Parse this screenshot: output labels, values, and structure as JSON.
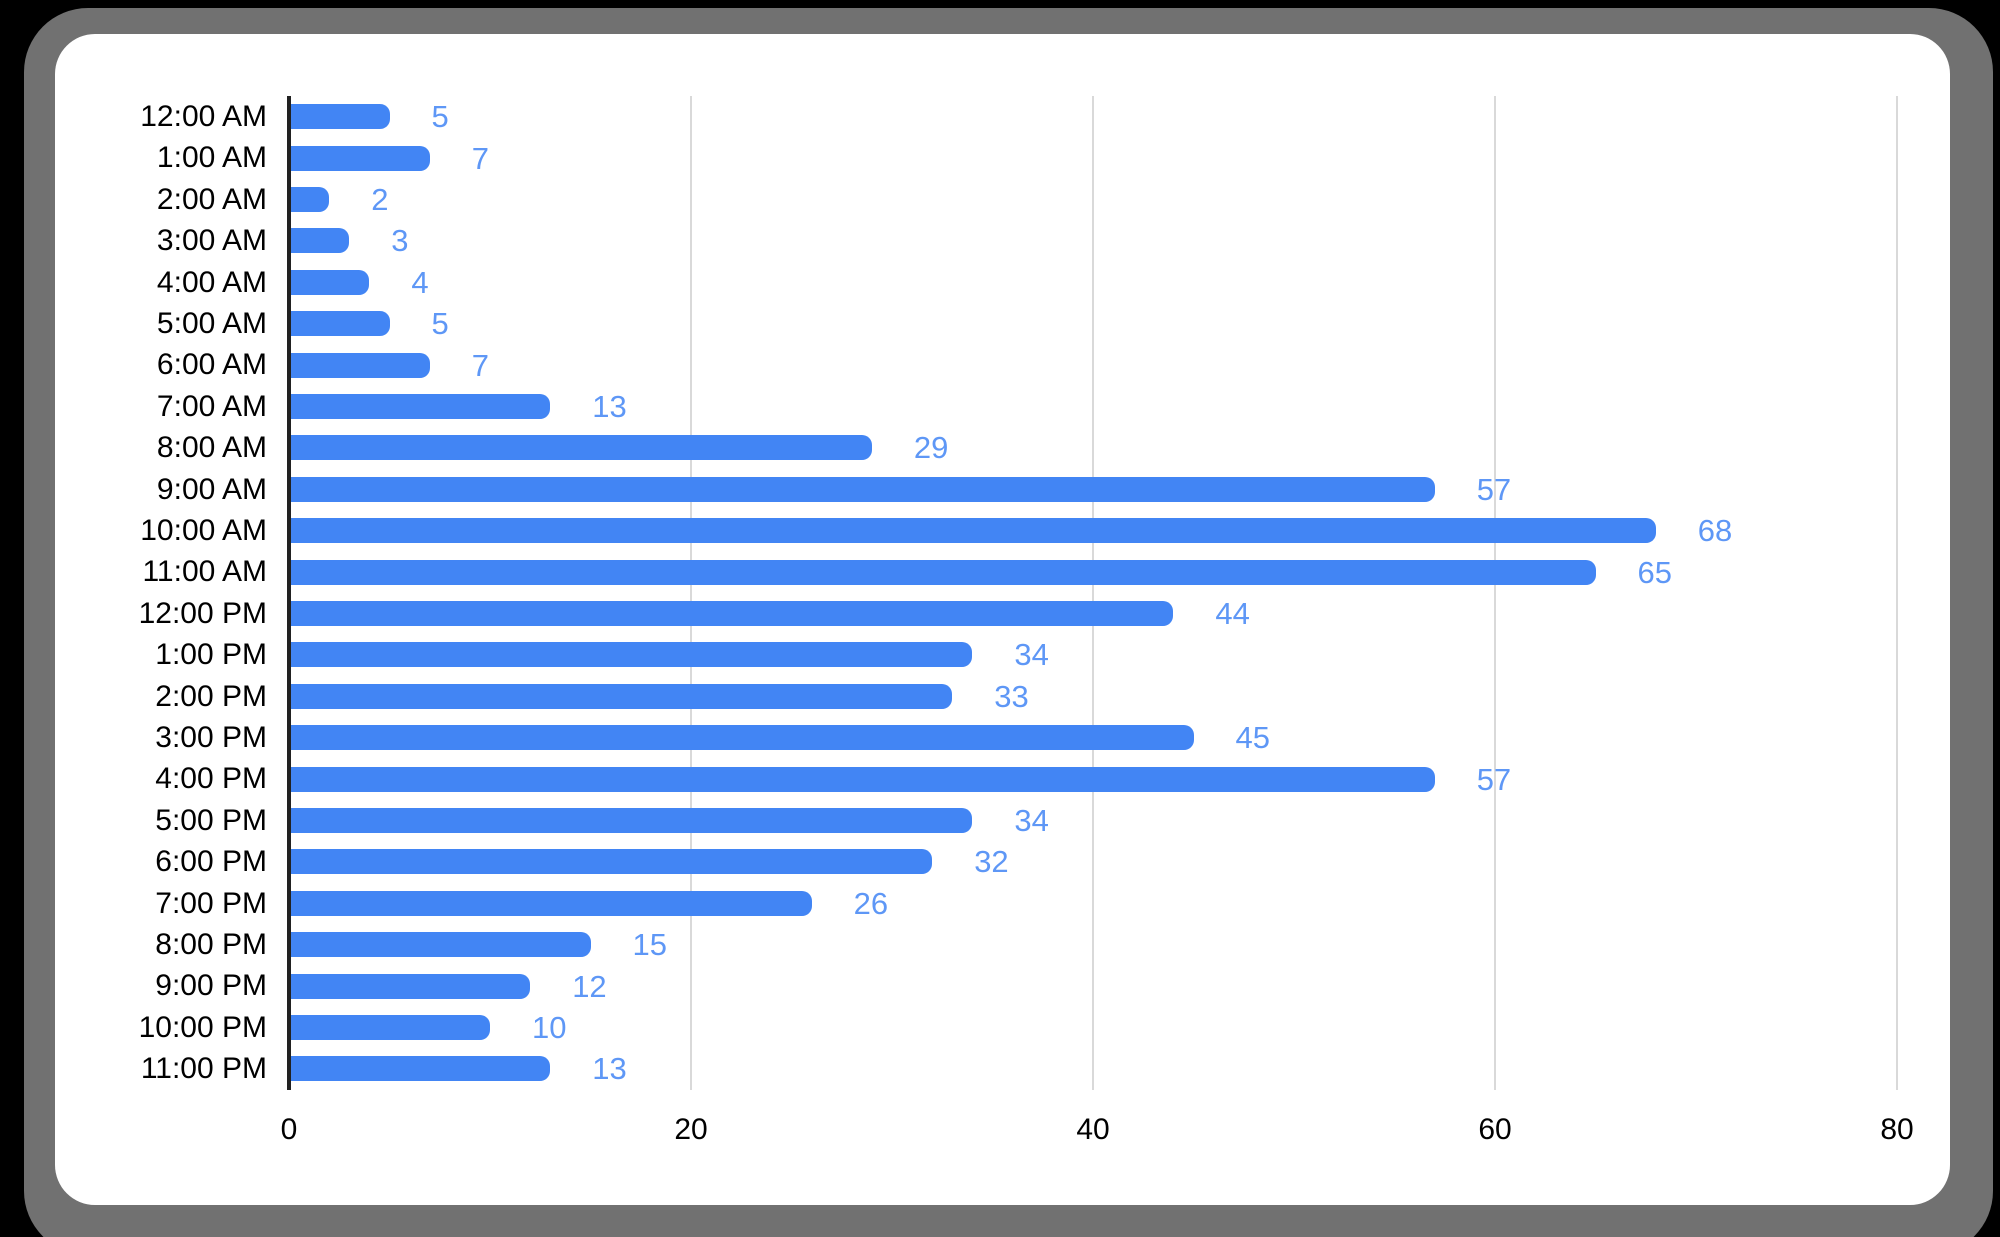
{
  "chart_data": {
    "type": "bar",
    "orientation": "horizontal",
    "title": "",
    "xlabel": "",
    "ylabel": "",
    "categories": [
      "12:00 AM",
      "1:00 AM",
      "2:00 AM",
      "3:00 AM",
      "4:00 AM",
      "5:00 AM",
      "6:00 AM",
      "7:00 AM",
      "8:00 AM",
      "9:00 AM",
      "10:00 AM",
      "11:00 AM",
      "12:00 PM",
      "1:00 PM",
      "2:00 PM",
      "3:00 PM",
      "4:00 PM",
      "5:00 PM",
      "6:00 PM",
      "7:00 PM",
      "8:00 PM",
      "9:00 PM",
      "10:00 PM",
      "11:00 PM"
    ],
    "values": [
      5,
      7,
      2,
      3,
      4,
      5,
      7,
      13,
      29,
      57,
      68,
      65,
      44,
      34,
      33,
      45,
      57,
      34,
      32,
      26,
      15,
      12,
      10,
      13
    ],
    "value_labels_shown": true,
    "xlim": [
      0,
      80
    ],
    "x_ticks": [
      0,
      20,
      40,
      60,
      80
    ],
    "grid": "vertical",
    "legend": "none",
    "colors": {
      "bar": "#4285f4",
      "value_label": "#5e97f6",
      "gridline": "#d9d9d9",
      "axis_line": "#212121",
      "tick_label": "#000000",
      "category_label": "#000000",
      "card_background": "#ffffff",
      "frame": "#717171",
      "page_background": "#000000"
    }
  }
}
